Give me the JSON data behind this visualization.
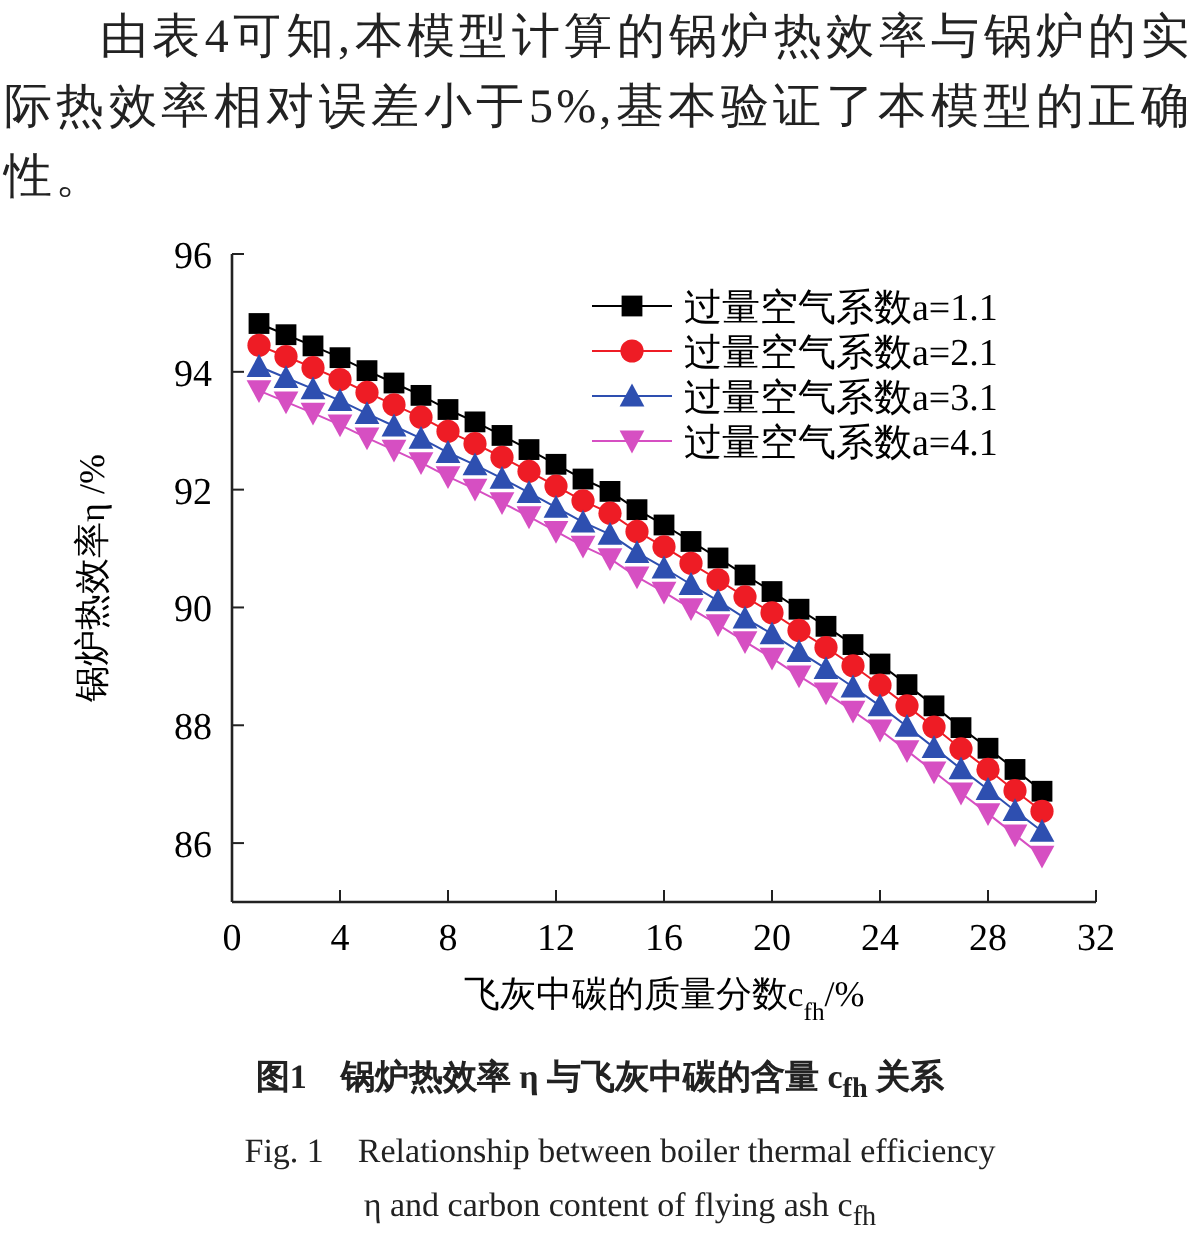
{
  "chart_data": {
    "type": "line",
    "xlabel": "飞灰中碳的质量分数c$_{fh}$/%",
    "ylabel": "锅炉热效率η /%",
    "x": [
      1,
      2,
      3,
      4,
      5,
      6,
      7,
      8,
      9,
      10,
      11,
      12,
      13,
      14,
      15,
      16,
      17,
      18,
      19,
      20,
      21,
      22,
      23,
      24,
      25,
      26,
      27,
      28,
      29,
      30
    ],
    "series": [
      {
        "name": "过量空气系数a=1.1",
        "color": "#000000",
        "marker": "square",
        "values": [
          94.82,
          94.63,
          94.44,
          94.24,
          94.02,
          93.81,
          93.6,
          93.36,
          93.15,
          92.92,
          92.68,
          92.43,
          92.18,
          91.97,
          91.66,
          91.4,
          91.12,
          90.84,
          90.55,
          90.27,
          89.97,
          89.68,
          89.37,
          89.04,
          88.69,
          88.33,
          87.96,
          87.61,
          87.25,
          86.88
        ]
      },
      {
        "name": "过量空气系数a=2.1",
        "color": "#ee1c25",
        "marker": "circle",
        "values": [
          94.45,
          94.26,
          94.07,
          93.87,
          93.65,
          93.44,
          93.23,
          92.99,
          92.78,
          92.55,
          92.31,
          92.06,
          91.81,
          91.6,
          91.29,
          91.03,
          90.75,
          90.47,
          90.18,
          89.91,
          89.61,
          89.32,
          89.01,
          88.68,
          88.33,
          87.97,
          87.6,
          87.25,
          86.89,
          86.54
        ]
      },
      {
        "name": "过量空气系数a=3.1",
        "color": "#2e4fb0",
        "marker": "triangle",
        "values": [
          94.09,
          93.9,
          93.71,
          93.51,
          93.29,
          93.08,
          92.87,
          92.63,
          92.42,
          92.19,
          91.95,
          91.7,
          91.45,
          91.24,
          90.93,
          90.67,
          90.39,
          90.11,
          89.82,
          89.55,
          89.25,
          88.96,
          88.65,
          88.33,
          87.98,
          87.62,
          87.26,
          86.91,
          86.55,
          86.2
        ]
      },
      {
        "name": "过量空气系数a=4.1",
        "color": "#d64fc2",
        "marker": "triangle-down",
        "values": [
          93.68,
          93.49,
          93.3,
          93.1,
          92.88,
          92.67,
          92.46,
          92.22,
          92.01,
          91.78,
          91.54,
          91.29,
          91.04,
          90.83,
          90.52,
          90.26,
          89.98,
          89.71,
          89.42,
          89.14,
          88.84,
          88.55,
          88.24,
          87.92,
          87.57,
          87.21,
          86.85,
          86.5,
          86.14,
          85.78
        ]
      }
    ],
    "xlim": [
      0,
      32
    ],
    "xticks": [
      0,
      4,
      8,
      12,
      16,
      20,
      24,
      28,
      32
    ],
    "ylim": [
      85,
      96
    ],
    "yticks": [
      86,
      88,
      90,
      92,
      94,
      96
    ],
    "grid": false,
    "legend": "top right",
    "line_style": "solid",
    "annotations": [
      "由表4可知,本模型计算的锅炉热效率与锅炉的实际热效率相对误差小于5%,基本验证了本模型的正确性。",
      "图1　锅炉热效率 η 与飞灰中碳的含量 c$_{fh}$ 关系",
      "Fig. 1　Relationship between boiler thermal efficiency η and carbon content of flying ash c$_{fh}$"
    ]
  }
}
